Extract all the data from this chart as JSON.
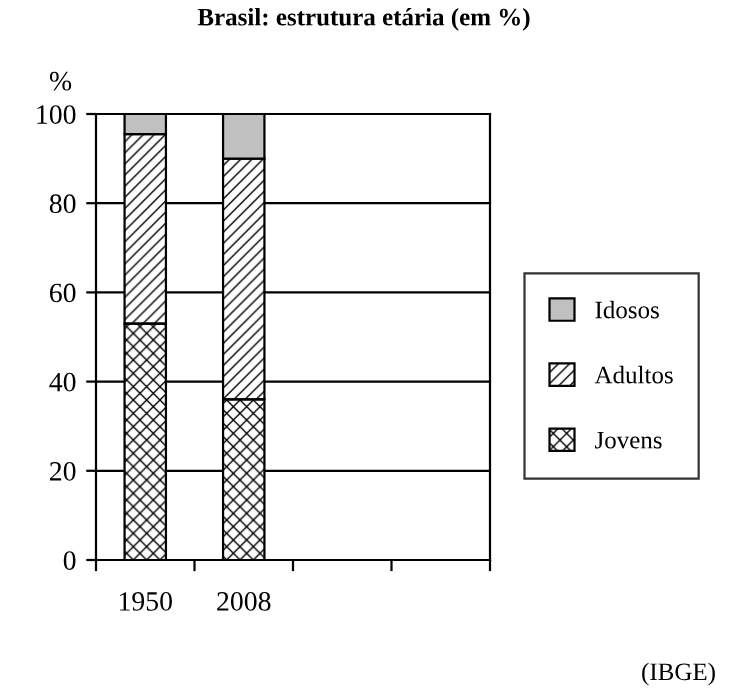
{
  "chart_data": {
    "type": "bar",
    "stacked": true,
    "title": "Brasil: estrutura etária (em %)",
    "ylabel": "%",
    "categories": [
      "1950",
      "2008",
      null,
      null
    ],
    "series": [
      {
        "name": "Jovens",
        "color": "#000000",
        "values": [
          53,
          36,
          null,
          null
        ]
      },
      {
        "name": "Adultos",
        "color": "#000000",
        "values": [
          42.5,
          54,
          null,
          null
        ]
      },
      {
        "name": "Idosos",
        "color": "#c0c0c0",
        "values": [
          4.5,
          10,
          null,
          null
        ]
      }
    ],
    "ylim": [
      0,
      100
    ],
    "yticks": [
      0,
      20,
      40,
      60,
      80,
      100
    ],
    "grid": "y",
    "legend": "right",
    "annotations": [
      "(IBGE)"
    ]
  }
}
